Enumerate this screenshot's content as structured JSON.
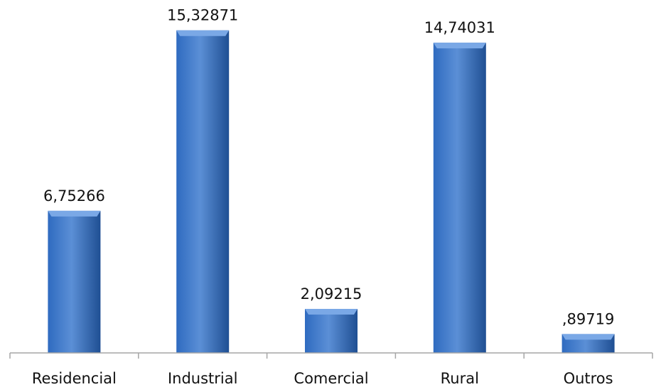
{
  "chart_data": {
    "type": "bar",
    "title": "",
    "xlabel": "",
    "ylabel": "",
    "categories": [
      "Residencial",
      "Industrial",
      "Comercial",
      "Rural",
      "Outros"
    ],
    "values": [
      6.75266,
      15.32871,
      2.09215,
      14.74031,
      0.89719
    ],
    "data_labels": [
      "6,75266",
      "15,32871",
      "2,09215",
      "14,74031",
      ",89719"
    ],
    "ylim": [
      0,
      16.5
    ],
    "grid": false,
    "legend": "none",
    "colors": {
      "bar_light": "#5b8fd6",
      "bar_mid": "#2f6bc0",
      "bar_dark": "#1f4f93",
      "bar_top": "#7aa8e6",
      "axis": "#a6a6a6"
    }
  }
}
